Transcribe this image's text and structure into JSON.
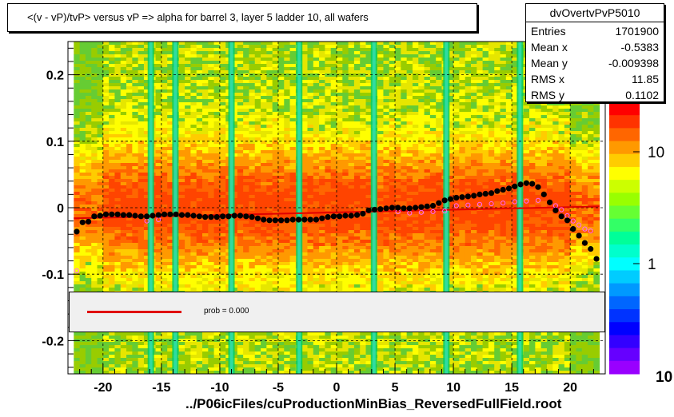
{
  "title": "<(v - vP)/tvP> versus   vP => alpha for barrel 3, layer 5 ladder 10, all wafers",
  "stats": {
    "name": "dvOvertvPvP5010",
    "rows": [
      {
        "key": "Entries",
        "value": "1701900"
      },
      {
        "key": "Mean x",
        "value": "-0.5383"
      },
      {
        "key": "Mean y",
        "value": "-0.009398"
      },
      {
        "key": "RMS x",
        "value": "11.85"
      },
      {
        "key": "RMS y",
        "value": "0.1102"
      }
    ]
  },
  "legend": {
    "fit_label": "prob = 0.000",
    "fit_color": "#e00000"
  },
  "xlabel": "../P06icFiles/cuProductionMinBias_ReversedFullField.root",
  "colors": {
    "profile_marker": "#000000",
    "open_marker": "#ff66ff",
    "fit_line": "#e00000"
  },
  "chart_data": {
    "type": "heatmap",
    "xlim": [
      -23,
      23
    ],
    "ylim": [
      -0.25,
      0.25
    ],
    "x_ticks": [
      "-20",
      "-15",
      "-10",
      "-5",
      "0",
      "5",
      "10",
      "15",
      "20"
    ],
    "y_ticks": [
      "0.2",
      "0.1",
      "0",
      "-0.1",
      "-0.2"
    ],
    "color_scale": {
      "type": "log",
      "tick_labels": [
        "1",
        "10"
      ],
      "bottom_label": "10"
    },
    "profile_series": {
      "name": "profile",
      "x": [
        -22.25,
        -21.75,
        -21.25,
        -20.75,
        -20.25,
        -19.75,
        -19.25,
        -18.75,
        -18.25,
        -17.75,
        -17.25,
        -16.75,
        -16.25,
        -15.75,
        -15.25,
        -14.75,
        -14.25,
        -13.75,
        -13.25,
        -12.75,
        -12.25,
        -11.75,
        -11.25,
        -10.75,
        -10.25,
        -9.75,
        -9.25,
        -8.75,
        -8.25,
        -7.75,
        -7.25,
        -6.75,
        -6.25,
        -5.75,
        -5.25,
        -4.75,
        -4.25,
        -3.75,
        -3.25,
        -2.75,
        -2.25,
        -1.75,
        -1.25,
        -0.75,
        -0.25,
        0.25,
        0.75,
        1.25,
        1.75,
        2.25,
        2.75,
        3.25,
        3.75,
        4.25,
        4.75,
        5.25,
        5.75,
        6.25,
        6.75,
        7.25,
        7.75,
        8.25,
        8.75,
        9.25,
        9.75,
        10.25,
        10.75,
        11.25,
        11.75,
        12.25,
        12.75,
        13.25,
        13.75,
        14.25,
        14.75,
        15.25,
        15.75,
        16.25,
        16.75,
        17.25,
        17.75,
        18.25,
        18.75,
        19.25,
        19.75,
        20.25,
        20.75,
        21.25,
        21.75,
        22.25
      ],
      "y": [
        -0.036,
        -0.022,
        -0.021,
        -0.013,
        -0.012,
        -0.01,
        -0.01,
        -0.01,
        -0.011,
        -0.011,
        -0.012,
        -0.013,
        -0.013,
        -0.012,
        -0.011,
        -0.01,
        -0.01,
        -0.01,
        -0.011,
        -0.011,
        -0.012,
        -0.013,
        -0.014,
        -0.014,
        -0.014,
        -0.013,
        -0.013,
        -0.012,
        -0.012,
        -0.013,
        -0.014,
        -0.016,
        -0.018,
        -0.019,
        -0.019,
        -0.019,
        -0.019,
        -0.018,
        -0.018,
        -0.018,
        -0.018,
        -0.018,
        -0.016,
        -0.014,
        -0.013,
        -0.013,
        -0.012,
        -0.012,
        -0.011,
        -0.009,
        -0.004,
        -0.003,
        -0.002,
        -0.001,
        0.0,
        0.0,
        -0.001,
        -0.001,
        0.0,
        0.001,
        0.002,
        0.003,
        0.007,
        0.011,
        0.013,
        0.015,
        0.016,
        0.017,
        0.018,
        0.02,
        0.021,
        0.022,
        0.025,
        0.027,
        0.029,
        0.032,
        0.035,
        0.037,
        0.036,
        0.031,
        0.02,
        0.008,
        -0.004,
        -0.013,
        -0.019,
        -0.032,
        -0.042,
        -0.053,
        -0.062,
        -0.077
      ]
    },
    "open_series": {
      "name": "open",
      "x": [
        -22.25,
        -16.25,
        -15.25,
        5.25,
        6.25,
        7.25,
        8.25,
        9.25,
        10.25,
        11.25,
        12.25,
        13.25,
        14.25,
        15.25,
        16.25,
        17.25,
        18.25,
        18.75,
        19.25,
        19.75,
        20.25,
        20.75,
        21.25,
        21.75
      ],
      "y": [
        -0.095,
        -0.02,
        -0.018,
        -0.006,
        -0.008,
        -0.007,
        -0.006,
        -0.005,
        0.003,
        0.004,
        0.005,
        0.006,
        0.007,
        0.009,
        0.01,
        0.011,
        0.008,
        0.003,
        -0.003,
        -0.012,
        -0.02,
        -0.026,
        -0.032,
        -0.035
      ]
    },
    "fit_line": {
      "x": [
        -22.5,
        22.5
      ],
      "y": [
        -0.016,
        0.002
      ]
    },
    "vertical_bands_x": [
      -15.9,
      -13.8,
      -9.0,
      -3.2,
      3.2,
      9.4,
      15.7
    ],
    "grid": true
  }
}
